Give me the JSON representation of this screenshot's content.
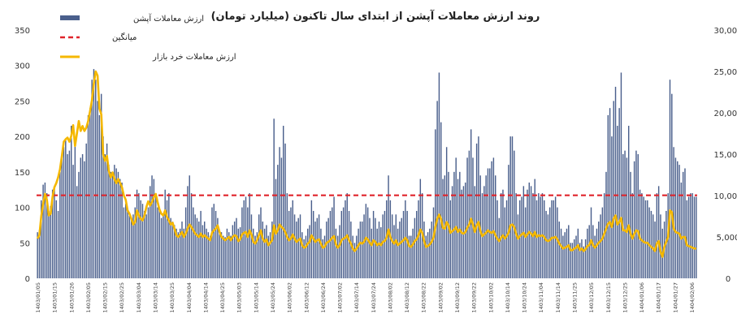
{
  "chart_data": {
    "type": "bar",
    "title": "روند ارزش معاملات آپشن از ابتدای سال تاکنون (میلیارد تومان)",
    "legend": {
      "placement": "top-left",
      "entries": [
        {
          "key": "bars",
          "label": "ارزش معاملات آپشن",
          "color": "#4a5f8c"
        },
        {
          "key": "avg",
          "label": "میانگین",
          "color": "#e0242b"
        },
        {
          "key": "retail",
          "label": "ارزش معاملات خرد بازار",
          "color": "#f5b800"
        }
      ]
    },
    "y_left": {
      "min": 0,
      "max": 350,
      "ticks": [
        "0",
        "50",
        "100",
        "150",
        "200",
        "250",
        "300",
        "350"
      ]
    },
    "y_right": {
      "min": 0,
      "max": 30000,
      "ticks": [
        "0",
        "5,000",
        "10,000",
        "15,000",
        "20,000",
        "25,000",
        "30,000"
      ]
    },
    "grid": false,
    "average_value": 117,
    "x_labels": [
      "1403/01/05",
      "1403/01/15",
      "1403/01/26",
      "1403/02/05",
      "1403/02/15",
      "1403/02/25",
      "1403/03/04",
      "1403/03/14",
      "1403/03/25",
      "1403/04/04",
      "1403/04/14",
      "1403/04/25",
      "1403/05/03",
      "1403/05/14",
      "1403/05/24",
      "1403/06/02",
      "1403/06/12",
      "1403/06/24",
      "1403/07/02",
      "1403/07/14",
      "1403/07/24",
      "1403/08/02",
      "1403/08/12",
      "1403/08/22",
      "1403/09/02",
      "1403/09/12",
      "1403/09/22",
      "1403/10/02",
      "1403/10/14",
      "1403/10/24",
      "1403/11/04",
      "1403/11/14",
      "1403/11/25",
      "1403/12/05",
      "1403/12/15",
      "1403/12/25",
      "1404/01/06",
      "1404/01/17",
      "1404/01/27",
      "1404/02/06"
    ],
    "series": [
      {
        "name": "ارزش معاملات آپشن",
        "axis": "left",
        "type": "bar",
        "values": [
          65,
          68,
          110,
          132,
          135,
          120,
          95,
          102,
          125,
          130,
          110,
          95,
          150,
          170,
          185,
          195,
          175,
          180,
          215,
          160,
          195,
          130,
          150,
          170,
          175,
          165,
          190,
          230,
          240,
          280,
          295,
          280,
          250,
          230,
          260,
          200,
          175,
          190,
          160,
          150,
          145,
          160,
          155,
          150,
          140,
          135,
          100,
          105,
          95,
          88,
          85,
          90,
          100,
          125,
          120,
          110,
          105,
          95,
          90,
          100,
          130,
          145,
          140,
          120,
          100,
          95,
          85,
          90,
          125,
          110,
          120,
          85,
          80,
          75,
          70,
          65,
          70,
          80,
          70,
          100,
          130,
          145,
          120,
          100,
          90,
          85,
          80,
          95,
          75,
          80,
          70,
          65,
          60,
          100,
          105,
          95,
          85,
          62,
          65,
          60,
          58,
          70,
          65,
          60,
          75,
          80,
          85,
          70,
          72,
          100,
          110,
          115,
          100,
          120,
          90,
          70,
          60,
          65,
          90,
          100,
          80,
          70,
          75,
          60,
          65,
          80,
          225,
          140,
          160,
          185,
          170,
          215,
          190,
          120,
          95,
          100,
          110,
          90,
          80,
          85,
          90,
          65,
          55,
          60,
          70,
          75,
          110,
          95,
          80,
          85,
          90,
          70,
          55,
          60,
          80,
          85,
          95,
          100,
          115,
          70,
          60,
          75,
          95,
          100,
          110,
          120,
          95,
          80,
          60,
          50,
          60,
          70,
          80,
          80,
          90,
          105,
          100,
          85,
          70,
          95,
          85,
          70,
          80,
          72,
          90,
          95,
          110,
          145,
          110,
          90,
          75,
          90,
          70,
          80,
          85,
          95,
          110,
          95,
          60,
          60,
          70,
          85,
          95,
          110,
          140,
          120,
          80,
          60,
          65,
          70,
          80,
          100,
          210,
          250,
          290,
          220,
          140,
          145,
          185,
          150,
          110,
          130,
          150,
          170,
          140,
          150,
          125,
          130,
          135,
          170,
          180,
          210,
          170,
          130,
          190,
          200,
          145,
          120,
          130,
          145,
          155,
          155,
          165,
          170,
          145,
          110,
          85,
          120,
          125,
          100,
          110,
          160,
          200,
          200,
          180,
          120,
          90,
          110,
          115,
          130,
          100,
          125,
          135,
          130,
          120,
          140,
          110,
          120,
          115,
          120,
          110,
          95,
          90,
          100,
          110,
          110,
          115,
          100,
          80,
          70,
          60,
          65,
          70,
          75,
          50,
          50,
          55,
          60,
          70,
          50,
          55,
          45,
          55,
          70,
          75,
          100,
          75,
          60,
          70,
          80,
          90,
          100,
          120,
          150,
          230,
          240,
          200,
          250,
          270,
          215,
          240,
          290,
          175,
          180,
          170,
          215,
          150,
          120,
          165,
          180,
          175,
          125,
          120,
          115,
          110,
          110,
          100,
          95,
          90,
          80,
          120,
          130,
          90,
          70,
          80,
          95,
          120,
          280,
          260,
          185,
          170,
          165,
          160,
          135,
          150,
          155,
          110,
          115,
          120,
          120,
          115,
          115
        ]
      },
      {
        "name": "ارزش معاملات خرد بازار",
        "axis": "right",
        "type": "line",
        "values": [
          4800,
          5200,
          7500,
          9000,
          10200,
          9500,
          7600,
          7800,
          9800,
          11000,
          11500,
          12200,
          13200,
          14800,
          16500,
          16800,
          17000,
          16500,
          17200,
          18500,
          16000,
          17500,
          19000,
          17800,
          18400,
          17800,
          18200,
          19000,
          20200,
          21500,
          23500,
          25000,
          24500,
          20500,
          19800,
          15000,
          14200,
          14800,
          13000,
          12200,
          12800,
          12000,
          11500,
          12000,
          11500,
          11000,
          10000,
          9500,
          8200,
          7800,
          7200,
          6500,
          6800,
          8200,
          7600,
          7200,
          7000,
          7600,
          8600,
          9300,
          8800,
          9200,
          9800,
          10200,
          9200,
          8300,
          7800,
          7600,
          8200,
          7400,
          7000,
          6500,
          6700,
          6000,
          5200,
          5000,
          5300,
          5600,
          5000,
          5400,
          6000,
          6500,
          6200,
          5800,
          5400,
          5200,
          5000,
          5400,
          5000,
          5200,
          5000,
          4800,
          4600,
          5500,
          5800,
          6000,
          6400,
          5600,
          5000,
          4800,
          4600,
          4800,
          5000,
          4600,
          5000,
          5200,
          5100,
          4500,
          4700,
          5300,
          5500,
          5600,
          5000,
          5800,
          5300,
          4400,
          4200,
          4600,
          5200,
          5800,
          4800,
          4400,
          4700,
          4000,
          4300,
          4600,
          6400,
          5400,
          5800,
          6500,
          6200,
          6000,
          5600,
          5000,
          4600,
          4800,
          5300,
          4800,
          4400,
          4600,
          4800,
          4000,
          3700,
          3800,
          4200,
          4400,
          5200,
          4800,
          4400,
          4600,
          4700,
          4200,
          3700,
          3800,
          4300,
          4400,
          4600,
          4900,
          5100,
          4100,
          3700,
          4000,
          4600,
          4800,
          4900,
          5200,
          4600,
          4200,
          3600,
          3300,
          3600,
          4000,
          4300,
          4200,
          4400,
          4900,
          4700,
          4300,
          4000,
          4600,
          4400,
          4000,
          4200,
          4000,
          4400,
          4500,
          4900,
          5900,
          5000,
          4500,
          4200,
          4600,
          4000,
          4200,
          4400,
          4600,
          4900,
          4600,
          3900,
          3800,
          4100,
          4500,
          4700,
          5200,
          5900,
          5500,
          4500,
          3800,
          3900,
          4100,
          4400,
          4900,
          6200,
          7200,
          7700,
          7200,
          6100,
          6000,
          6800,
          6400,
          5500,
          5700,
          5900,
          6200,
          5600,
          5900,
          5500,
          5400,
          5600,
          6100,
          6500,
          7200,
          6500,
          5600,
          6400,
          6800,
          5700,
          5100,
          5300,
          5500,
          5800,
          5600,
          5500,
          5700,
          5200,
          4800,
          4500,
          4900,
          5200,
          4800,
          5100,
          5500,
          6400,
          6500,
          6200,
          5400,
          4800,
          5100,
          5300,
          5500,
          5000,
          5300,
          5600,
          5400,
          5100,
          5600,
          5000,
          5200,
          5100,
          5200,
          5000,
          4600,
          4500,
          4600,
          4900,
          4900,
          5000,
          4700,
          4200,
          3900,
          3600,
          3700,
          3800,
          4000,
          3400,
          3400,
          3600,
          3700,
          4000,
          3400,
          3600,
          3300,
          3500,
          3900,
          4000,
          4600,
          4000,
          3700,
          4000,
          4300,
          4500,
          4800,
          5400,
          6000,
          6600,
          6800,
          6200,
          7200,
          7600,
          6500,
          6800,
          7300,
          5800,
          5800,
          5600,
          6400,
          5400,
          4800,
          5400,
          5800,
          5700,
          4800,
          4600,
          4400,
          4300,
          4300,
          4000,
          3800,
          3600,
          3300,
          4200,
          4500,
          3200,
          2600,
          3800,
          4400,
          5000,
          8200,
          8000,
          6000,
          5600,
          5500,
          5400,
          4800,
          5000,
          5000,
          4000,
          3900,
          3800,
          3700,
          3600,
          3600
        ]
      }
    ]
  }
}
